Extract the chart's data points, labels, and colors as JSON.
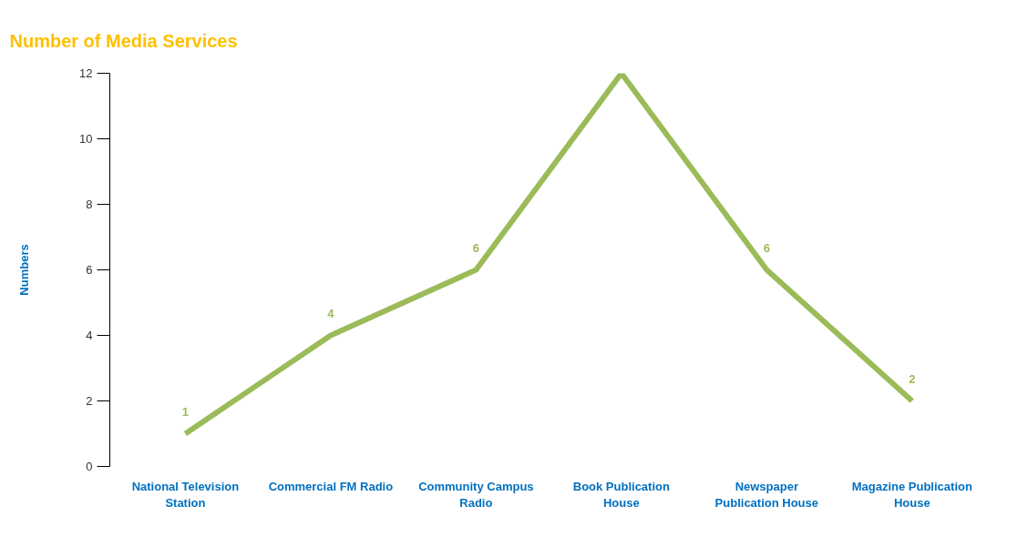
{
  "chart_data": {
    "type": "line",
    "title": "Number of Media Services",
    "ylabel": "Numbers",
    "categories": [
      "National Television Station",
      "Commercial FM Radio",
      "Community Campus Radio",
      "Book Publication House",
      "Newspaper Publication House",
      "Magazine Publication House"
    ],
    "series": [
      {
        "color": "#9bbb59",
        "values": [
          1,
          4,
          6,
          12,
          6,
          2
        ],
        "value_labels": [
          "1",
          "4",
          "6",
          null,
          "6",
          "2"
        ]
      }
    ],
    "ylim": [
      0,
      12
    ],
    "yticks": [
      0,
      2,
      4,
      6,
      8,
      10,
      12
    ],
    "grid": false,
    "marker": "none",
    "line_style": "solid"
  }
}
